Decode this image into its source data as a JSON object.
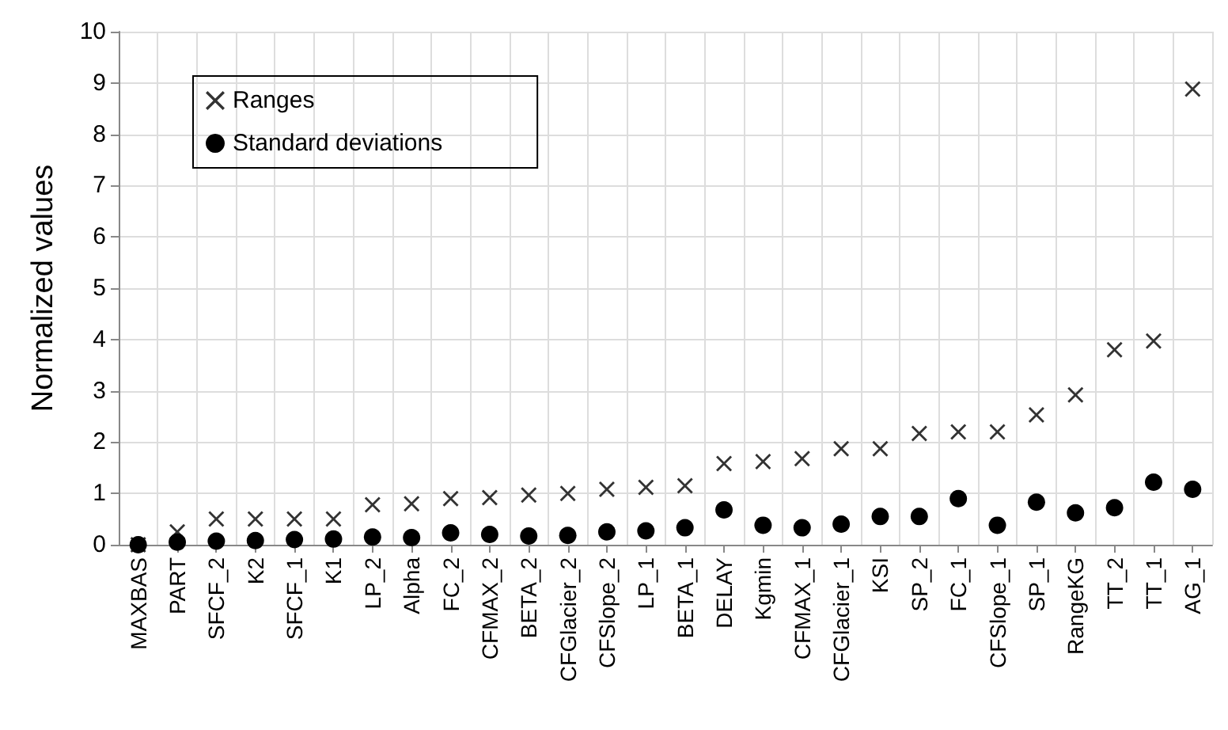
{
  "chart_data": {
    "type": "scatter",
    "ylabel": "Normalized values",
    "categories": [
      "MAXBAS",
      "PART",
      "SFCF_2",
      "K2",
      "SFCF_1",
      "K1",
      "LP_2",
      "Alpha",
      "FC_2",
      "CFMAX_2",
      "BETA_2",
      "CFGlacier_2",
      "CFSlope_2",
      "LP_1",
      "BETA_1",
      "DELAY",
      "Kgmin",
      "CFMAX_1",
      "CFGlacier_1",
      "KSI",
      "SP_2",
      "FC_1",
      "CFSlope_1",
      "SP_1",
      "RangeKG",
      "TT_2",
      "TT_1",
      "AG_1"
    ],
    "series": [
      {
        "name": "Ranges",
        "color": "#333333",
        "marker": "cross",
        "values": [
          0,
          0.25,
          0.5,
          0.5,
          0.5,
          0.5,
          0.78,
          0.8,
          0.9,
          0.92,
          0.97,
          1.0,
          1.08,
          1.12,
          1.15,
          1.58,
          1.62,
          1.68,
          1.87,
          1.87,
          2.17,
          2.2,
          2.2,
          2.53,
          2.92,
          3.8,
          3.97,
          8.88
        ]
      },
      {
        "name": "Standard deviations",
        "color": "#000000",
        "marker": "circle",
        "values": [
          0,
          0.05,
          0.07,
          0.08,
          0.1,
          0.11,
          0.15,
          0.14,
          0.23,
          0.2,
          0.17,
          0.18,
          0.25,
          0.27,
          0.33,
          0.68,
          0.38,
          0.33,
          0.4,
          0.55,
          0.55,
          0.9,
          0.38,
          0.83,
          0.62,
          0.72,
          1.22,
          1.08
        ]
      }
    ],
    "ylim": [
      0,
      10
    ],
    "yticks": [
      0,
      1,
      2,
      3,
      4,
      5,
      6,
      7,
      8,
      9,
      10
    ],
    "grid": true,
    "legend": "top left"
  }
}
